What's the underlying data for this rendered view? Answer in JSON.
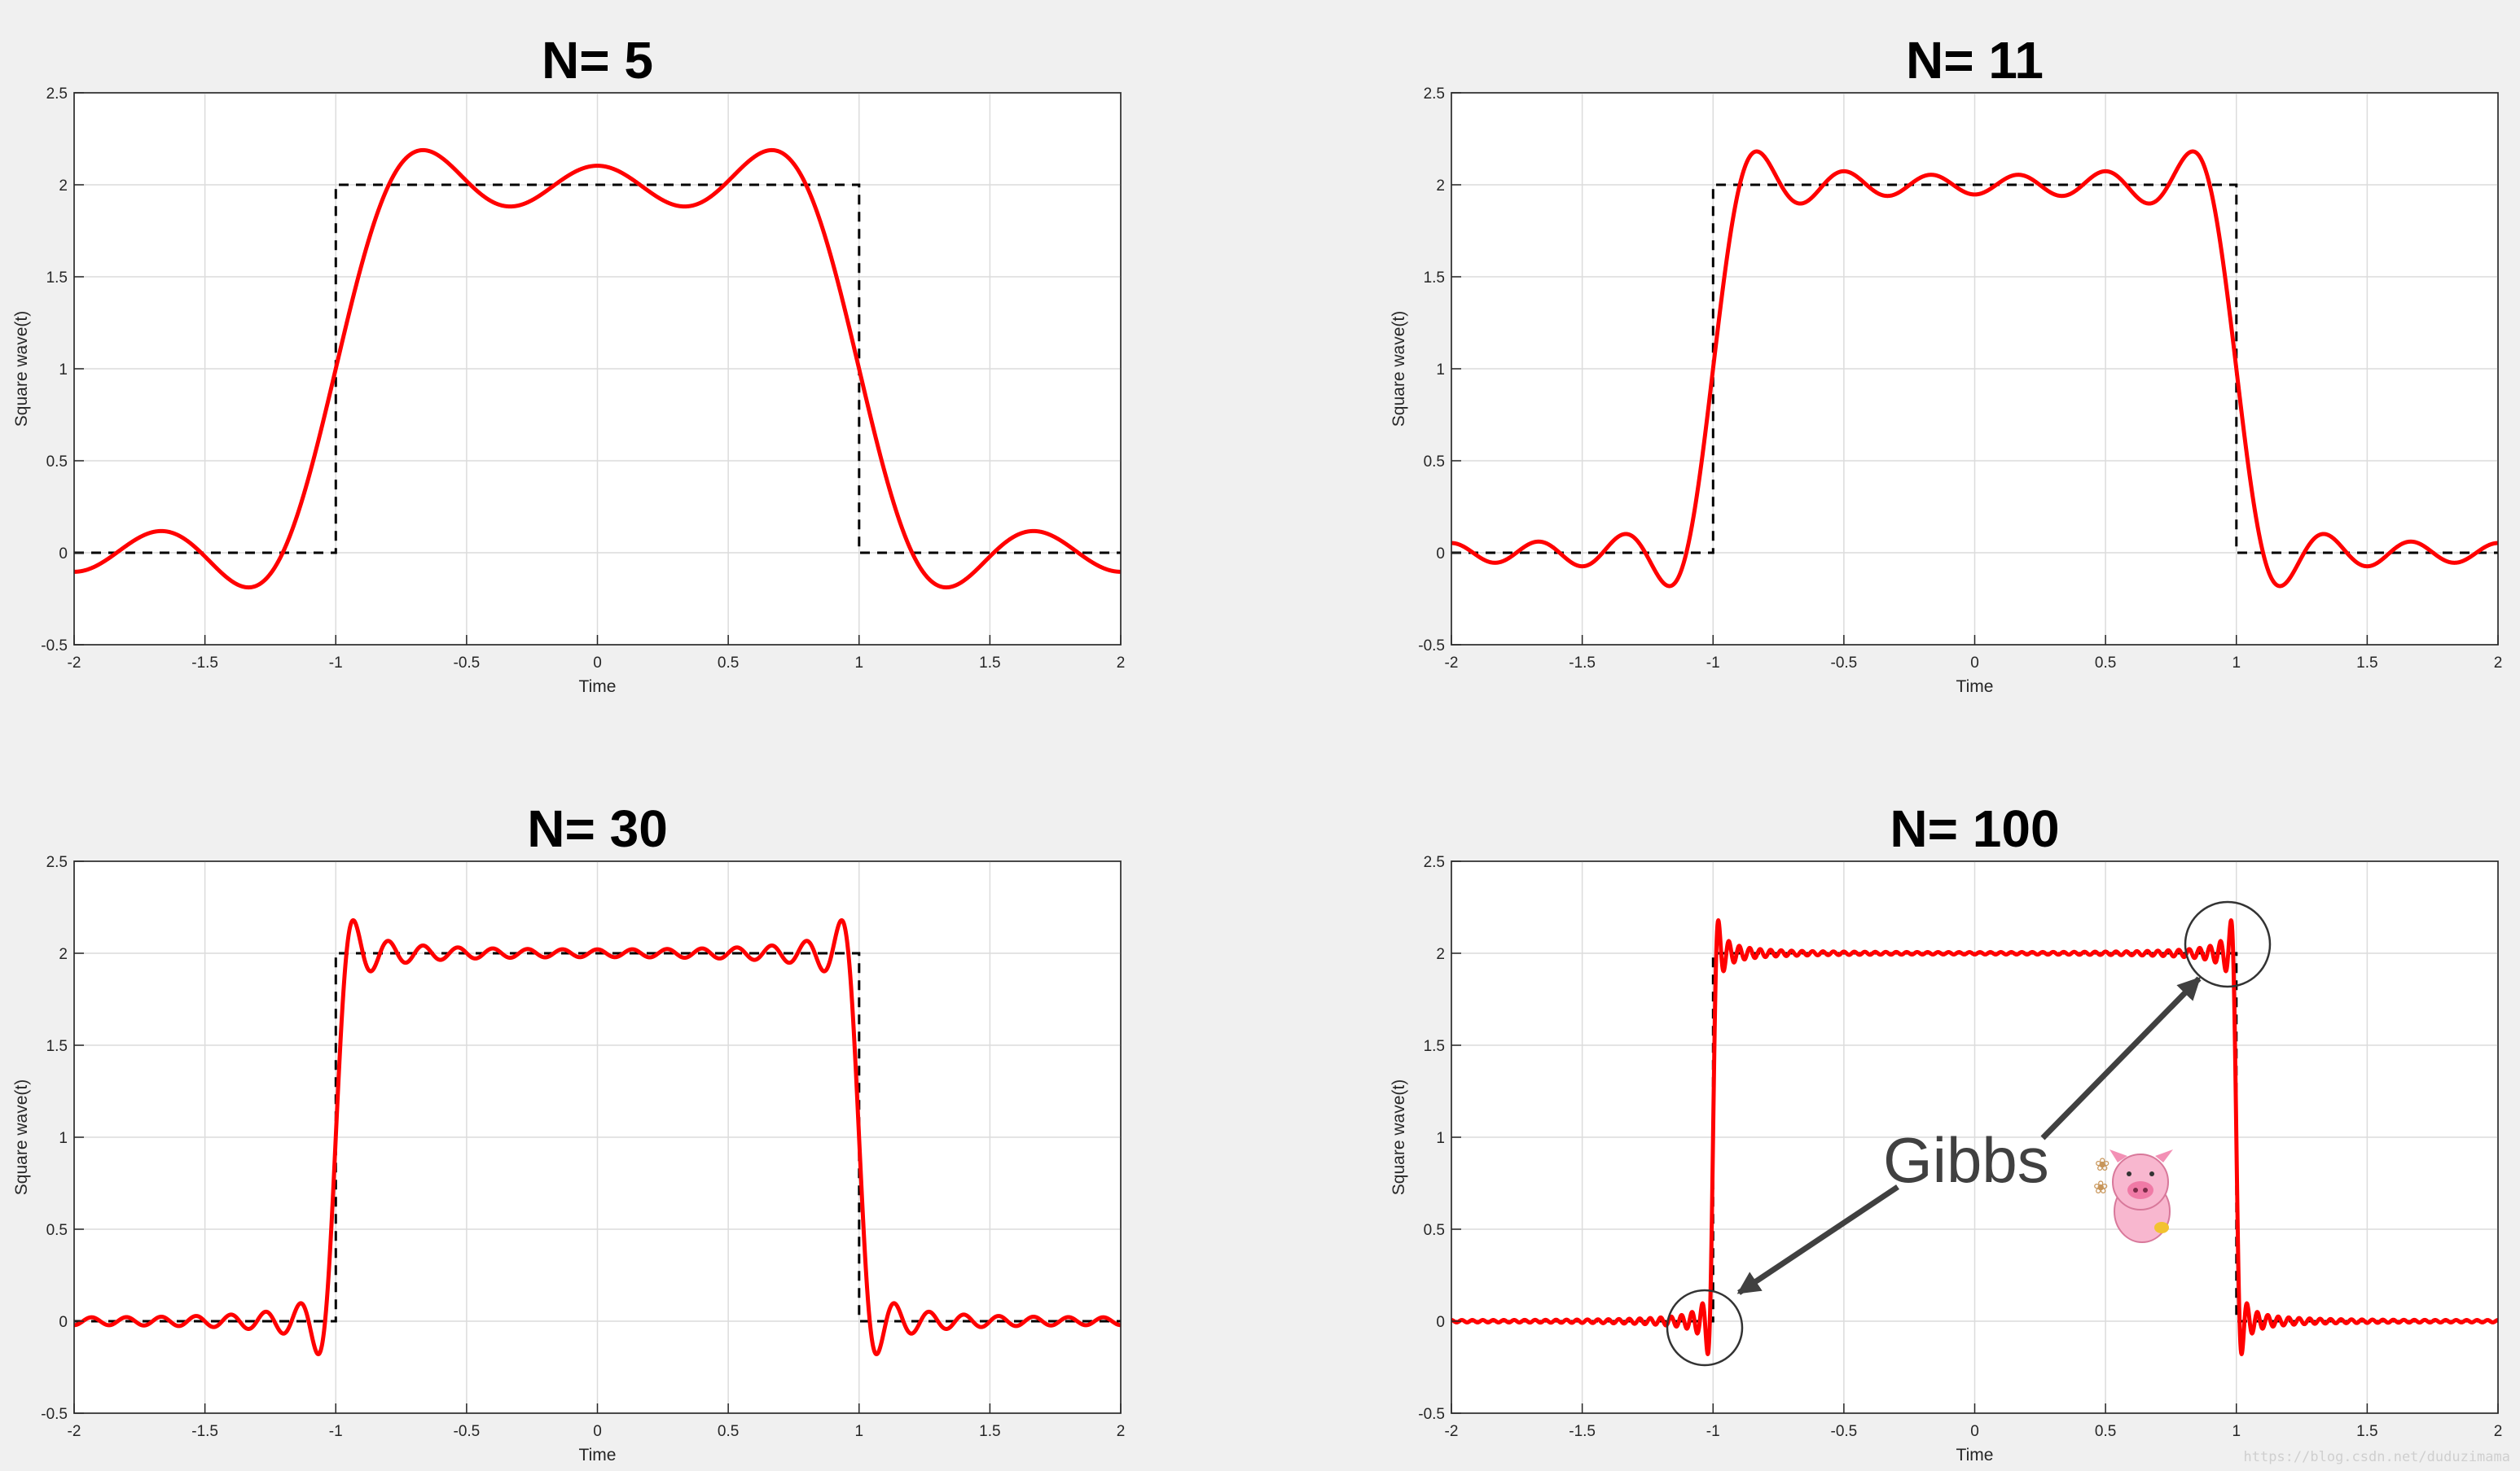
{
  "colors": {
    "background": "#f0f0f0",
    "axes_background": "#ffffff",
    "fourier_series": "#ff0000",
    "square_wave": "#000000",
    "grid": "#dcdcdc",
    "annotation": "#404040"
  },
  "chart_data": [
    {
      "type": "line",
      "title": "N= 5",
      "N": 5,
      "xlabel": "Time",
      "ylabel": "Square wave(t)",
      "xlim": [
        -2,
        2
      ],
      "ylim": [
        -0.5,
        2.5
      ],
      "xticks": [
        -2,
        -1.5,
        -1,
        -0.5,
        0,
        0.5,
        1,
        1.5,
        2
      ],
      "xtick_labels": [
        "-2",
        "-1.5",
        "-1",
        "-0.5",
        "0",
        "0.5",
        "1",
        "1.5",
        "2"
      ],
      "yticks": [
        -0.5,
        0,
        0.5,
        1,
        1.5,
        2,
        2.5
      ],
      "ytick_labels": [
        "-0.5",
        "0",
        "0.5",
        "1",
        "1.5",
        "2",
        "2.5"
      ],
      "grid": true,
      "square_wave": {
        "style": "dashed",
        "x": [
          -2,
          -1,
          -1,
          1,
          1,
          2
        ],
        "y": [
          0,
          0,
          2,
          2,
          0,
          0
        ]
      },
      "fourier_series": {
        "style": "solid",
        "formula": "1 + (4/pi) * sum_{k=1..N, k odd} (-1)^((k-1)/2) * cos(k*pi*t/2) / k"
      }
    },
    {
      "type": "line",
      "title": "N= 11",
      "N": 11,
      "xlabel": "Time",
      "ylabel": "Square wave(t)",
      "xlim": [
        -2,
        2
      ],
      "ylim": [
        -0.5,
        2.5
      ],
      "xticks": [
        -2,
        -1.5,
        -1,
        -0.5,
        0,
        0.5,
        1,
        1.5,
        2
      ],
      "xtick_labels": [
        "-2",
        "-1.5",
        "-1",
        "-0.5",
        "0",
        "0.5",
        "1",
        "1.5",
        "2"
      ],
      "yticks": [
        -0.5,
        0,
        0.5,
        1,
        1.5,
        2,
        2.5
      ],
      "ytick_labels": [
        "-0.5",
        "0",
        "0.5",
        "1",
        "1.5",
        "2",
        "2.5"
      ],
      "grid": true,
      "square_wave": {
        "style": "dashed",
        "x": [
          -2,
          -1,
          -1,
          1,
          1,
          2
        ],
        "y": [
          0,
          0,
          2,
          2,
          0,
          0
        ]
      },
      "fourier_series": {
        "style": "solid",
        "formula": "1 + (4/pi) * sum_{k=1..N, k odd} (-1)^((k-1)/2) * cos(k*pi*t/2) / k"
      }
    },
    {
      "type": "line",
      "title": "N= 30",
      "N": 30,
      "xlabel": "Time",
      "ylabel": "Square wave(t)",
      "xlim": [
        -2,
        2
      ],
      "ylim": [
        -0.5,
        2.5
      ],
      "xticks": [
        -2,
        -1.5,
        -1,
        -0.5,
        0,
        0.5,
        1,
        1.5,
        2
      ],
      "xtick_labels": [
        "-2",
        "-1.5",
        "-1",
        "-0.5",
        "0",
        "0.5",
        "1",
        "1.5",
        "2"
      ],
      "yticks": [
        -0.5,
        0,
        0.5,
        1,
        1.5,
        2,
        2.5
      ],
      "ytick_labels": [
        "-0.5",
        "0",
        "0.5",
        "1",
        "1.5",
        "2",
        "2.5"
      ],
      "grid": true,
      "square_wave": {
        "style": "dashed",
        "x": [
          -2,
          -1,
          -1,
          1,
          1,
          2
        ],
        "y": [
          0,
          0,
          2,
          2,
          0,
          0
        ]
      },
      "fourier_series": {
        "style": "solid",
        "formula": "1 + (4/pi) * sum_{k=1..N, k odd} (-1)^((k-1)/2) * cos(k*pi*t/2) / k"
      }
    },
    {
      "type": "line",
      "title": "N= 100",
      "N": 100,
      "xlabel": "Time",
      "ylabel": "Square wave(t)",
      "xlim": [
        -2,
        2
      ],
      "ylim": [
        -0.5,
        2.5
      ],
      "xticks": [
        -2,
        -1.5,
        -1,
        -0.5,
        0,
        0.5,
        1,
        1.5,
        2
      ],
      "xtick_labels": [
        "-2",
        "-1.5",
        "-1",
        "-0.5",
        "0",
        "0.5",
        "1",
        "1.5",
        "2"
      ],
      "yticks": [
        -0.5,
        0,
        0.5,
        1,
        1.5,
        2,
        2.5
      ],
      "ytick_labels": [
        "-0.5",
        "0",
        "0.5",
        "1",
        "1.5",
        "2",
        "2.5"
      ],
      "grid": true,
      "square_wave": {
        "style": "dashed",
        "x": [
          -2,
          -1,
          -1,
          1,
          1,
          2
        ],
        "y": [
          0,
          0,
          2,
          2,
          0,
          0
        ]
      },
      "fourier_series": {
        "style": "solid",
        "formula": "1 + (4/pi) * sum_{k=1..N, k odd} (-1)^((k-1)/2) * cos(k*pi*t/2) / k"
      },
      "annotations": {
        "text": "Gibbs",
        "arrow_targets": [
          [
            -1.03,
            0.15
          ],
          [
            0.97,
            2.07
          ]
        ],
        "circle_centers": [
          [
            -1.03,
            -0.03
          ],
          [
            0.97,
            2.04
          ]
        ]
      }
    }
  ],
  "watermark": "https://blog.csdn.net/duduzimama"
}
